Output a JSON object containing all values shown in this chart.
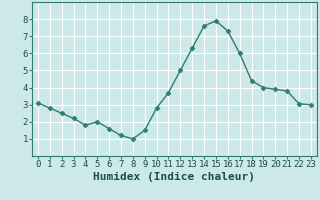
{
  "x": [
    0,
    1,
    2,
    3,
    4,
    5,
    6,
    7,
    8,
    9,
    10,
    11,
    12,
    13,
    14,
    15,
    16,
    17,
    18,
    19,
    20,
    21,
    22,
    23
  ],
  "y": [
    3.1,
    2.8,
    2.5,
    2.2,
    1.8,
    2.0,
    1.6,
    1.2,
    1.0,
    1.5,
    2.8,
    3.7,
    5.0,
    6.3,
    7.6,
    7.9,
    7.3,
    6.0,
    4.4,
    4.0,
    3.9,
    3.8,
    3.05,
    3.0
  ],
  "line_color": "#2e7d6e",
  "marker": "D",
  "marker_size": 2.5,
  "bg_color": "#cce8e8",
  "grid_color": "#ffffff",
  "xlabel": "Humidex (Indice chaleur)",
  "xlabel_fontsize": 8,
  "tick_fontsize": 6.5,
  "ylim": [
    0,
    9
  ],
  "xlim": [
    -0.5,
    23.5
  ],
  "yticks": [
    1,
    2,
    3,
    4,
    5,
    6,
    7,
    8
  ],
  "xticks": [
    0,
    1,
    2,
    3,
    4,
    5,
    6,
    7,
    8,
    9,
    10,
    11,
    12,
    13,
    14,
    15,
    16,
    17,
    18,
    19,
    20,
    21,
    22,
    23
  ]
}
